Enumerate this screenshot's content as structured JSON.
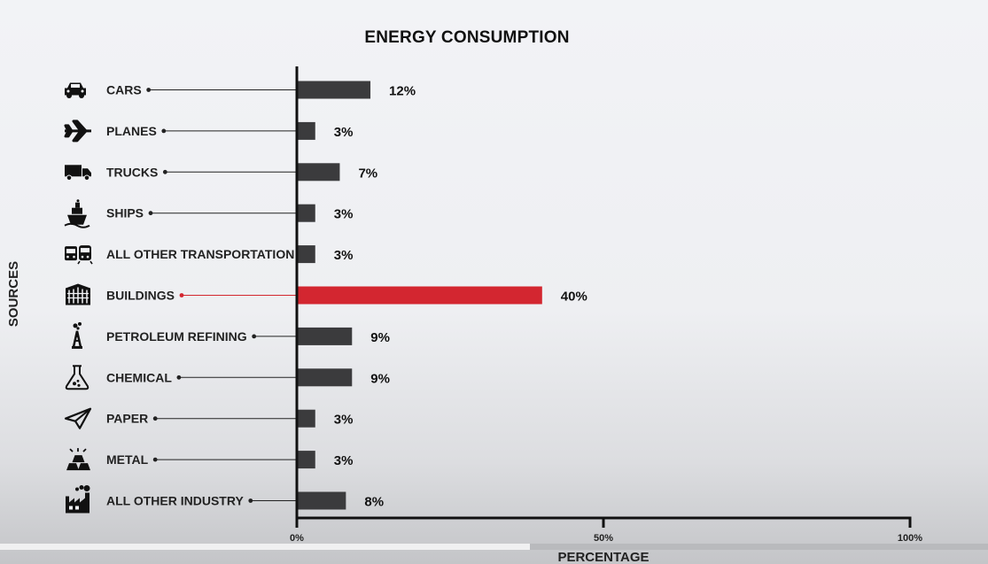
{
  "chart_data": {
    "type": "bar",
    "orientation": "horizontal",
    "title": "ENERGY CONSUMPTION",
    "xlabel": "PERCENTAGE",
    "ylabel": "SOURCES",
    "xlim": [
      0,
      100
    ],
    "xticks": [
      "0%",
      "50%",
      "100%"
    ],
    "categories": [
      "CARS",
      "PLANES",
      "TRUCKS",
      "SHIPS",
      "ALL OTHER TRANSPORTATION",
      "BUILDINGS",
      "PETROLEUM REFINING",
      "CHEMICAL",
      "PAPER",
      "METAL",
      "ALL OTHER INDUSTRY"
    ],
    "values": [
      12,
      3,
      7,
      3,
      3,
      40,
      9,
      9,
      3,
      3,
      8
    ],
    "value_labels": [
      "12%",
      "3%",
      "7%",
      "3%",
      "3%",
      "40%",
      "9%",
      "9%",
      "3%",
      "3%",
      "8%"
    ],
    "icons": [
      "car-icon",
      "plane-icon",
      "truck-icon",
      "ship-icon",
      "bus-train-icon",
      "building-icon",
      "oil-derrick-icon",
      "flask-icon",
      "paper-plane-icon",
      "metal-ingots-icon",
      "factory-icon"
    ],
    "highlight": "BUILDINGS",
    "colors": {
      "bar": "#3b3b3d",
      "highlight": "#d32630",
      "axis": "#111111"
    },
    "grid": false,
    "legend": "none"
  }
}
